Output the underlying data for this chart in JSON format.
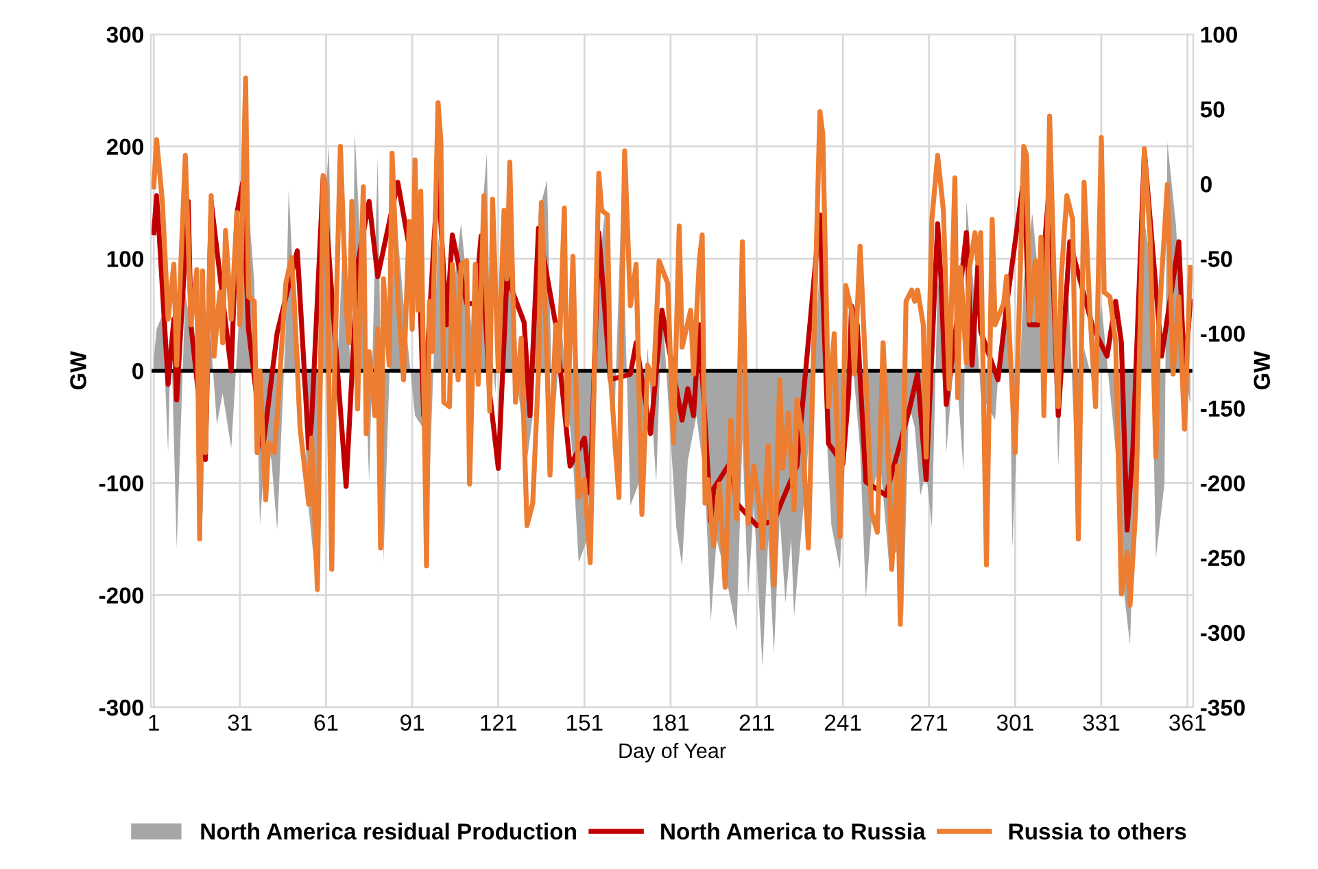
{
  "chart_data": {
    "type": "line",
    "xlabel": "Day of Year",
    "ylabel": "GW",
    "y2label": "GW",
    "xlim": [
      0,
      363
    ],
    "xticks": [
      1,
      31,
      61,
      91,
      121,
      151,
      181,
      211,
      241,
      271,
      301,
      331,
      361
    ],
    "ylim": [
      -300,
      300
    ],
    "yticks": [
      -300,
      -200,
      -100,
      0,
      100,
      200,
      300
    ],
    "y2lim": [
      -350,
      100
    ],
    "y2ticks": [
      -350,
      -300,
      -250,
      -200,
      -150,
      -100,
      -50,
      0,
      50,
      100
    ],
    "grid": true,
    "legend": "bottom",
    "marker": "none",
    "line_style": "solid",
    "ref_lines": [
      {
        "axis": "y",
        "value": 0,
        "color": "#000000"
      }
    ],
    "series": [
      {
        "name": "North America residual Production",
        "type": "area",
        "color": "#a6a6a6",
        "x": [
          1,
          2,
          4,
          6,
          7,
          9,
          12,
          15,
          18,
          20,
          23,
          25,
          28,
          31,
          33,
          36,
          38,
          40,
          42,
          44,
          47,
          48,
          50,
          53,
          55,
          58,
          60,
          62,
          64,
          67,
          70,
          71,
          74,
          76,
          79,
          81,
          85,
          88,
          92,
          95,
          97,
          100,
          104,
          108,
          112,
          117,
          118,
          120,
          122,
          125,
          128,
          131,
          133,
          135,
          138,
          140,
          143,
          147,
          149,
          152,
          155,
          158,
          161,
          164,
          167,
          170,
          173,
          176,
          178,
          180,
          183,
          185,
          187,
          190,
          193,
          195,
          197,
          200,
          204,
          206,
          208,
          210,
          213,
          215,
          217,
          219,
          221,
          223,
          224,
          228,
          231,
          233,
          235,
          237,
          240,
          242,
          244,
          247,
          249,
          252,
          254,
          257,
          260,
          262,
          264,
          266,
          268,
          270,
          272,
          274,
          276,
          277,
          280,
          283,
          284,
          287,
          289,
          294,
          296,
          299,
          300,
          304,
          307,
          310,
          313,
          316,
          319,
          322,
          325,
          328,
          331,
          335,
          337,
          339,
          341,
          343,
          345,
          348,
          350,
          353,
          354,
          357,
          360,
          362
        ],
        "values": [
          10,
          37,
          50,
          -73,
          40,
          -158,
          70,
          20,
          -130,
          60,
          -48,
          -20,
          -69,
          60,
          180,
          80,
          -138,
          -60,
          -80,
          -142,
          40,
          162,
          60,
          -20,
          -124,
          -201,
          130,
          200,
          -50,
          120,
          -20,
          212,
          60,
          -100,
          190,
          -170,
          150,
          60,
          -40,
          -52,
          -100,
          120,
          40,
          131,
          30,
          194,
          40,
          -20,
          80,
          190,
          -20,
          -80,
          -40,
          140,
          170,
          -60,
          40,
          -80,
          -171,
          -150,
          60,
          140,
          -80,
          160,
          -120,
          -100,
          20,
          -100,
          60,
          -20,
          -140,
          -174,
          -80,
          -40,
          -100,
          -223,
          -150,
          -180,
          -232,
          -60,
          -200,
          -120,
          -264,
          -150,
          -252,
          -130,
          -207,
          -150,
          -219,
          -100,
          0,
          100,
          -40,
          -138,
          -177,
          -40,
          20,
          -70,
          -203,
          -100,
          -80,
          -170,
          -160,
          -220,
          -30,
          -50,
          -111,
          -90,
          -140,
          80,
          60,
          -73,
          20,
          -89,
          151,
          60,
          -20,
          -44,
          30,
          60,
          -158,
          80,
          140,
          60,
          200,
          -85,
          100,
          -80,
          20,
          -10,
          60,
          -44,
          -101,
          -200,
          -244,
          -90,
          150,
          100,
          -167,
          -100,
          204,
          130,
          0,
          -30
        ]
      },
      {
        "name": "North America to Russia",
        "color": "#c00000",
        "x": [
          1,
          2,
          3,
          6,
          8,
          9,
          13,
          14,
          19,
          21,
          28,
          30,
          32,
          34,
          39,
          44,
          51,
          55,
          56,
          60,
          68,
          72,
          76,
          79,
          86,
          90,
          93,
          95,
          100,
          103,
          105,
          110,
          113,
          115,
          118,
          121,
          124,
          130,
          132,
          135,
          141,
          146,
          151,
          153,
          156,
          160,
          167,
          169,
          174,
          178,
          185,
          187,
          189,
          191,
          195,
          196,
          202,
          204,
          211,
          217,
          220,
          225,
          233,
          236,
          241,
          243,
          244,
          246,
          249,
          256,
          264,
          267,
          270,
          274,
          275,
          277,
          280,
          284,
          286,
          288,
          289,
          295,
          298,
          304,
          306,
          309,
          313,
          316,
          320,
          328,
          333,
          336,
          338,
          340,
          342,
          346,
          352,
          358,
          360,
          362
        ],
        "values": [
          123,
          156,
          117,
          -12,
          46,
          -26,
          151,
          40,
          -79,
          151,
          0,
          141,
          168,
          37,
          -69,
          34,
          107,
          -69,
          -44,
          172,
          -103,
          95,
          151,
          84,
          168,
          110,
          130,
          -40,
          176,
          41,
          121,
          60,
          60,
          120,
          -20,
          -87,
          84,
          43,
          -40,
          127,
          41,
          -85,
          -60,
          -109,
          123,
          -8,
          -3,
          25,
          -56,
          54,
          -44,
          -16,
          -40,
          41,
          -134,
          -105,
          -81,
          -118,
          -138,
          -134,
          -115,
          -85,
          139,
          -65,
          -83,
          -20,
          58,
          41,
          -99,
          -111,
          -36,
          -3,
          -97,
          131,
          90,
          -30,
          29,
          123,
          5,
          94,
          35,
          -8,
          58,
          172,
          41,
          41,
          168,
          -40,
          115,
          39,
          13,
          62,
          25,
          -142,
          -69,
          196,
          13,
          115,
          -8,
          62
        ]
      },
      {
        "name": "Russia to others",
        "color": "#ed7d31",
        "x": [
          1,
          2,
          4,
          6,
          8,
          9,
          12,
          14,
          16,
          17,
          18,
          19,
          21,
          22,
          24,
          25,
          26,
          28,
          30,
          31,
          33,
          34,
          36,
          37,
          38,
          40,
          41,
          43,
          44,
          47,
          49,
          50,
          52,
          55,
          56,
          58,
          60,
          61,
          63,
          64,
          66,
          68,
          69,
          70,
          72,
          73,
          74,
          75,
          76,
          78,
          79,
          80,
          81,
          83,
          84,
          86,
          88,
          90,
          91,
          92,
          93,
          94,
          96,
          97,
          98,
          100,
          101,
          102,
          104,
          105,
          107,
          108,
          110,
          111,
          113,
          114,
          116,
          118,
          119,
          121,
          123,
          124,
          125,
          127,
          129,
          130,
          131,
          133,
          135,
          136,
          138,
          139,
          141,
          142,
          144,
          145,
          147,
          149,
          151,
          153,
          155,
          156,
          157,
          159,
          160,
          163,
          165,
          167,
          169,
          171,
          173,
          175,
          177,
          180,
          182,
          184,
          185,
          188,
          189,
          191,
          192,
          193,
          194,
          196,
          198,
          200,
          202,
          204,
          206,
          208,
          210,
          212,
          213,
          215,
          217,
          219,
          220,
          222,
          224,
          225,
          227,
          229,
          233,
          234,
          236,
          238,
          240,
          241,
          242,
          244,
          245,
          247,
          249,
          251,
          253,
          255,
          257,
          258,
          260,
          261,
          263,
          265,
          266,
          267,
          269,
          270,
          272,
          274,
          276,
          278,
          280,
          281,
          282,
          284,
          285,
          287,
          288,
          289,
          291,
          293,
          294,
          297,
          298,
          301,
          304,
          305,
          306,
          308,
          309,
          310,
          311,
          313,
          315,
          316,
          317,
          319,
          321,
          323,
          325,
          327,
          329,
          331,
          332,
          334,
          336,
          338,
          340,
          341,
          343,
          346,
          348,
          350,
          351,
          354,
          356,
          358,
          360,
          362
        ],
        "values": [
          164,
          206,
          151,
          46,
          95,
          5,
          192,
          41,
          90,
          -150,
          89,
          -73,
          156,
          13,
          70,
          25,
          125,
          46,
          141,
          41,
          261,
          66,
          62,
          -73,
          0,
          -115,
          -64,
          -73,
          -40,
          78,
          101,
          58,
          -52,
          -119,
          -60,
          -195,
          174,
          164,
          -177,
          0,
          200,
          58,
          25,
          151,
          -34,
          80,
          164,
          -56,
          17,
          -40,
          37,
          -158,
          82,
          5,
          194,
          66,
          -8,
          133,
          37,
          188,
          54,
          160,
          -174,
          62,
          17,
          239,
          205,
          -28,
          -32,
          95,
          -8,
          95,
          98,
          -101,
          95,
          -12,
          156,
          -36,
          153,
          0,
          143,
          82,
          186,
          -28,
          29,
          -56,
          -138,
          -118,
          0,
          150,
          5,
          -93,
          41,
          0,
          145,
          -48,
          102,
          -113,
          -97,
          -171,
          62,
          176,
          143,
          139,
          -3,
          -113,
          196,
          58,
          95,
          -128,
          5,
          -12,
          98,
          78,
          -64,
          129,
          21,
          54,
          -3,
          98,
          121,
          -118,
          -97,
          -156,
          -101,
          -193,
          -44,
          -132,
          115,
          -136,
          -85,
          -122,
          -158,
          -67,
          -191,
          -8,
          -87,
          -38,
          -124,
          -26,
          -60,
          -158,
          231,
          211,
          -32,
          33,
          -148,
          -60,
          76,
          54,
          -3,
          111,
          -3,
          -126,
          -144,
          25,
          -85,
          -177,
          -85,
          -226,
          62,
          72,
          62,
          72,
          41,
          -77,
          135,
          192,
          143,
          -16,
          172,
          -24,
          92,
          7,
          90,
          123,
          96,
          123,
          -173,
          135,
          41,
          60,
          84,
          -73,
          200,
          192,
          45,
          98,
          45,
          119,
          -40,
          227,
          41,
          -32,
          82,
          156,
          135,
          -150,
          168,
          54,
          -32,
          208,
          70,
          66,
          25,
          -199,
          -162,
          -209,
          -122,
          198,
          119,
          -77,
          41,
          166,
          -3,
          66,
          -52,
          92
        ]
      }
    ]
  }
}
